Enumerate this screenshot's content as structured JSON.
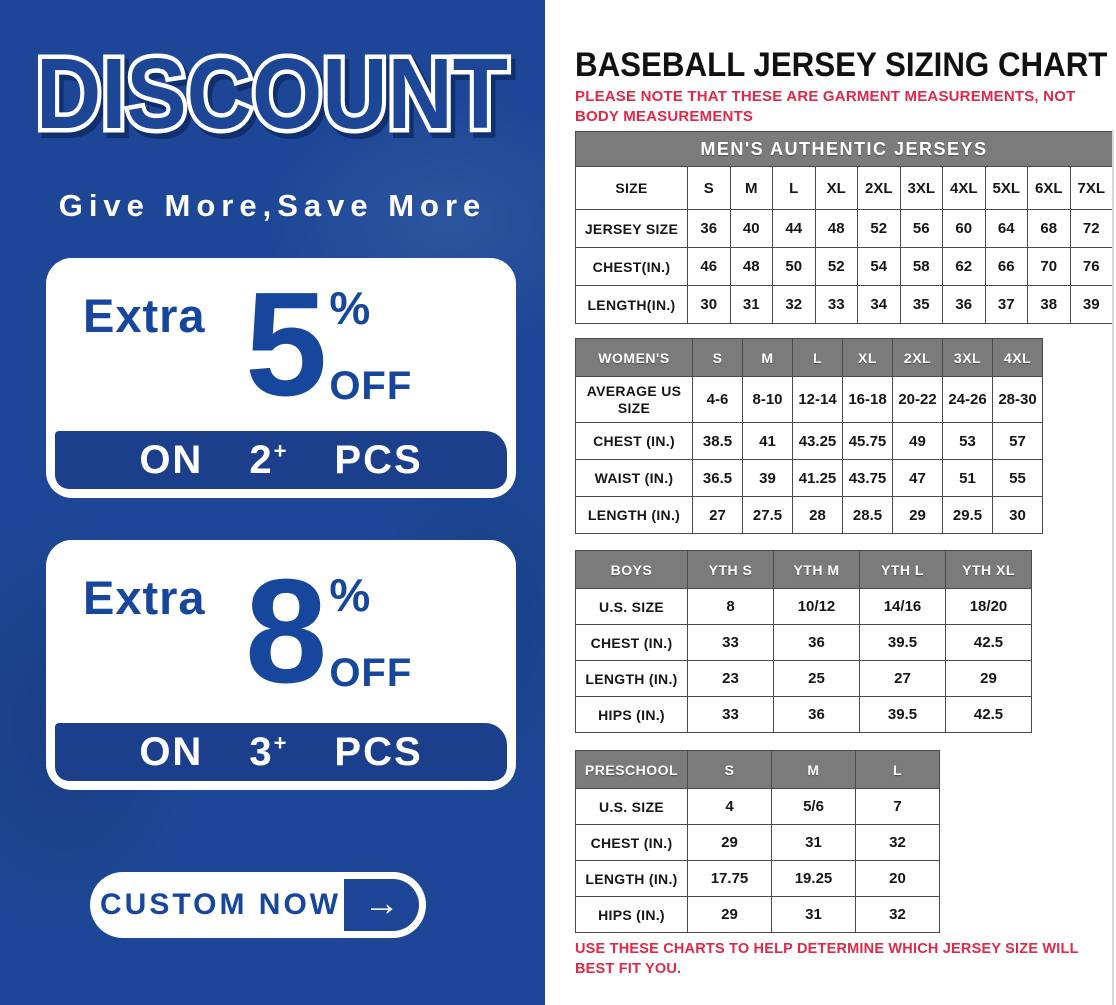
{
  "left_panel": {
    "headline": "DISCOUNT",
    "tagline": "Give More,Save More",
    "offers": [
      {
        "label": "Extra",
        "amount": "5",
        "percent": "%",
        "suffix": "OFF",
        "on": "ON",
        "qty": "2",
        "plus": "+",
        "pcs": "PCS"
      },
      {
        "label": "Extra",
        "amount": "8",
        "percent": "%",
        "suffix": "OFF",
        "on": "ON",
        "qty": "3",
        "plus": "+",
        "pcs": "PCS"
      }
    ],
    "cta": {
      "label": "CUSTOM NOW",
      "arrow": "→"
    },
    "colors": {
      "background": "#1d4796",
      "strip": "#1c3f8c",
      "card_text": "#17479d"
    }
  },
  "right_panel": {
    "title": "BASEBALL JERSEY SIZING CHART",
    "note_top": "PLEASE NOTE THAT THESE ARE GARMENT MEASUREMENTS, NOT BODY MEASUREMENTS",
    "note_bottom": "USE THESE CHARTS TO HELP DETERMINE WHICH JERSEY SIZE WILL BEST FIT YOU.",
    "colors": {
      "header_gray": "#7b7b7b",
      "note_red": "#e02847",
      "border": "#4a4a4a"
    },
    "tables": [
      {
        "id": "mens",
        "banner": "MEN'S AUTHENTIC JERSEYS",
        "header_label": "SIZE",
        "header_gray": false,
        "columns": [
          "S",
          "M",
          "L",
          "XL",
          "2XL",
          "3XL",
          "4XL",
          "5XL",
          "6XL",
          "7XL"
        ],
        "rows": [
          {
            "label": "JERSEY SIZE",
            "values": [
              "36",
              "40",
              "44",
              "48",
              "52",
              "56",
              "60",
              "64",
              "68",
              "72"
            ]
          },
          {
            "label": "CHEST(IN.)",
            "values": [
              "46",
              "48",
              "50",
              "52",
              "54",
              "58",
              "62",
              "66",
              "70",
              "76"
            ]
          },
          {
            "label": "LENGTH(IN.)",
            "values": [
              "30",
              "31",
              "32",
              "33",
              "34",
              "35",
              "36",
              "37",
              "38",
              "39"
            ]
          }
        ]
      },
      {
        "id": "womens",
        "banner": null,
        "header_label": "WOMEN'S",
        "header_gray": true,
        "columns": [
          "S",
          "M",
          "L",
          "XL",
          "2XL",
          "3XL",
          "4XL"
        ],
        "rows": [
          {
            "label": "AVERAGE US SIZE",
            "values": [
              "4-6",
              "8-10",
              "12-14",
              "16-18",
              "20-22",
              "24-26",
              "28-30"
            ]
          },
          {
            "label": "CHEST (IN.)",
            "values": [
              "38.5",
              "41",
              "43.25",
              "45.75",
              "49",
              "53",
              "57"
            ]
          },
          {
            "label": "WAIST (IN.)",
            "values": [
              "36.5",
              "39",
              "41.25",
              "43.75",
              "47",
              "51",
              "55"
            ]
          },
          {
            "label": "LENGTH (IN.)",
            "values": [
              "27",
              "27.5",
              "28",
              "28.5",
              "29",
              "29.5",
              "30"
            ]
          }
        ]
      },
      {
        "id": "boys",
        "banner": null,
        "header_label": "BOYS",
        "header_gray": true,
        "columns": [
          "YTH S",
          "YTH M",
          "YTH L",
          "YTH XL"
        ],
        "rows": [
          {
            "label": "U.S. SIZE",
            "values": [
              "8",
              "10/12",
              "14/16",
              "18/20"
            ]
          },
          {
            "label": "CHEST (IN.)",
            "values": [
              "33",
              "36",
              "39.5",
              "42.5"
            ]
          },
          {
            "label": "LENGTH (IN.)",
            "values": [
              "23",
              "25",
              "27",
              "29"
            ]
          },
          {
            "label": "HIPS (IN.)",
            "values": [
              "33",
              "36",
              "39.5",
              "42.5"
            ]
          }
        ]
      },
      {
        "id": "preschool",
        "banner": null,
        "header_label": "PRESCHOOL",
        "header_gray": true,
        "columns": [
          "S",
          "M",
          "L"
        ],
        "rows": [
          {
            "label": "U.S. SIZE",
            "values": [
              "4",
              "5/6",
              "7"
            ]
          },
          {
            "label": "CHEST (IN.)",
            "values": [
              "29",
              "31",
              "32"
            ]
          },
          {
            "label": "LENGTH (IN.)",
            "values": [
              "17.75",
              "19.25",
              "20"
            ]
          },
          {
            "label": "HIPS (IN.)",
            "values": [
              "29",
              "31",
              "32"
            ]
          }
        ]
      }
    ]
  }
}
